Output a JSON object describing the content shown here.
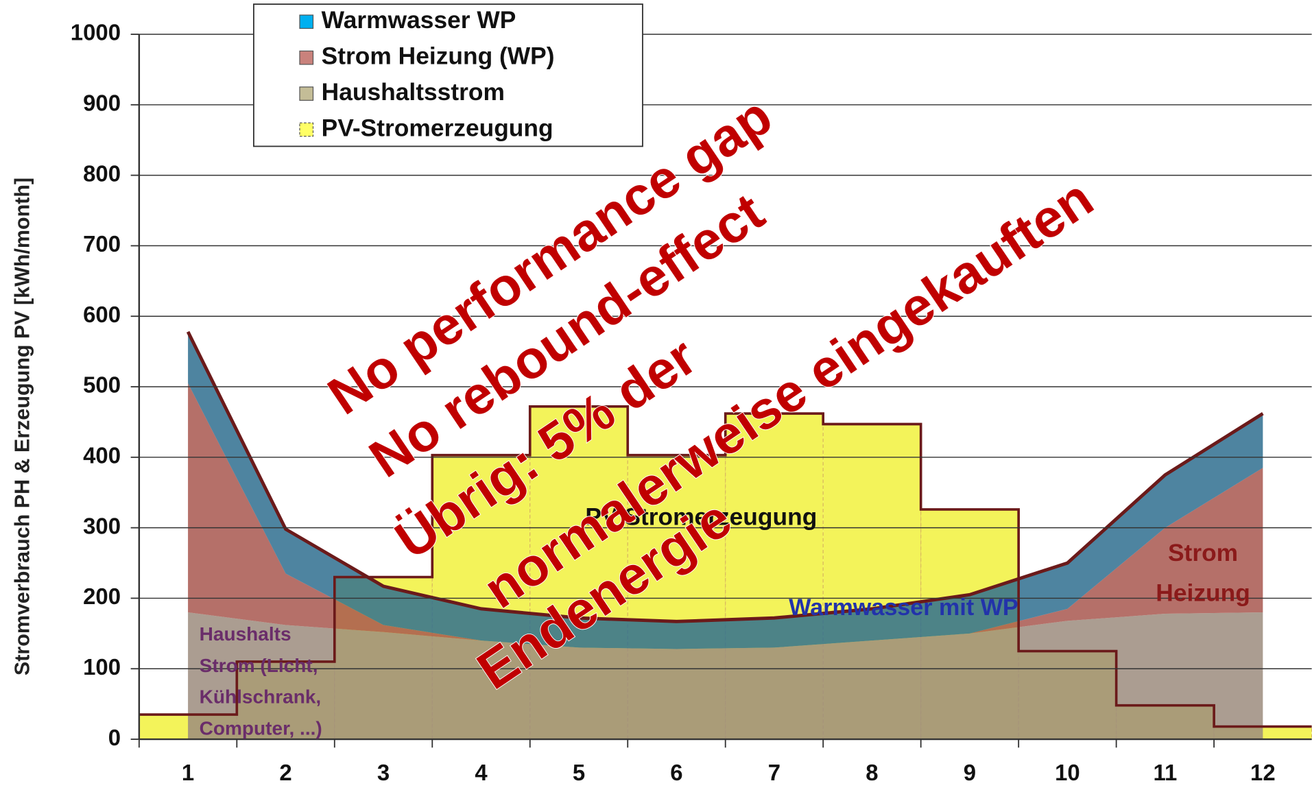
{
  "chart_data": {
    "type": "stacked-area-bar",
    "ylabel": "Stromverbrauch PH & Erzeugung PV [kWh/month]",
    "categories": [
      "1",
      "2",
      "3",
      "4",
      "5",
      "6",
      "7",
      "8",
      "9",
      "10",
      "11",
      "12"
    ],
    "ylim": [
      0,
      1000
    ],
    "yticks": [
      0,
      100,
      200,
      300,
      400,
      500,
      600,
      700,
      800,
      900,
      1000
    ],
    "grid": true,
    "legend": "top-left",
    "series": [
      {
        "name": "Warmwasser WP",
        "style": "area",
        "color": "#00b0f0",
        "fill": "#2f6e8f",
        "values": [
          73,
          63,
          55,
          45,
          42,
          39,
          42,
          45,
          55,
          65,
          75,
          77
        ]
      },
      {
        "name": "Strom Heizung (WP)",
        "style": "area",
        "color": "#c9827c",
        "fill": "#a8574f",
        "values": [
          325,
          73,
          10,
          0,
          0,
          0,
          0,
          0,
          0,
          17,
          122,
          205
        ]
      },
      {
        "name": "Haushaltsstrom",
        "style": "area",
        "color": "#c4bd97",
        "fill": "#9c8c7e",
        "values": [
          180,
          162,
          152,
          140,
          130,
          128,
          130,
          140,
          150,
          168,
          178,
          180
        ]
      },
      {
        "name": "PV-Stromerzeugung",
        "style": "bar",
        "color": "#ffff66",
        "fill": "#f3f35a",
        "values": [
          35,
          110,
          230,
          403,
          472,
          403,
          462,
          447,
          326,
          125,
          48,
          18
        ]
      }
    ],
    "labels": {
      "pv": "PV Stromerzeugung",
      "water": "Warmwasser mit WP",
      "heating": [
        "Strom",
        "Heizung"
      ],
      "household": [
        "Haushalts",
        "Strom (Licht,",
        "Kühlschrank,",
        "Computer, ...)"
      ]
    },
    "annotations": [
      "No performance gap",
      "No rebound-effect",
      "Übrig: 5% der",
      "normalerweise eingekauften",
      "Endenergie"
    ]
  }
}
